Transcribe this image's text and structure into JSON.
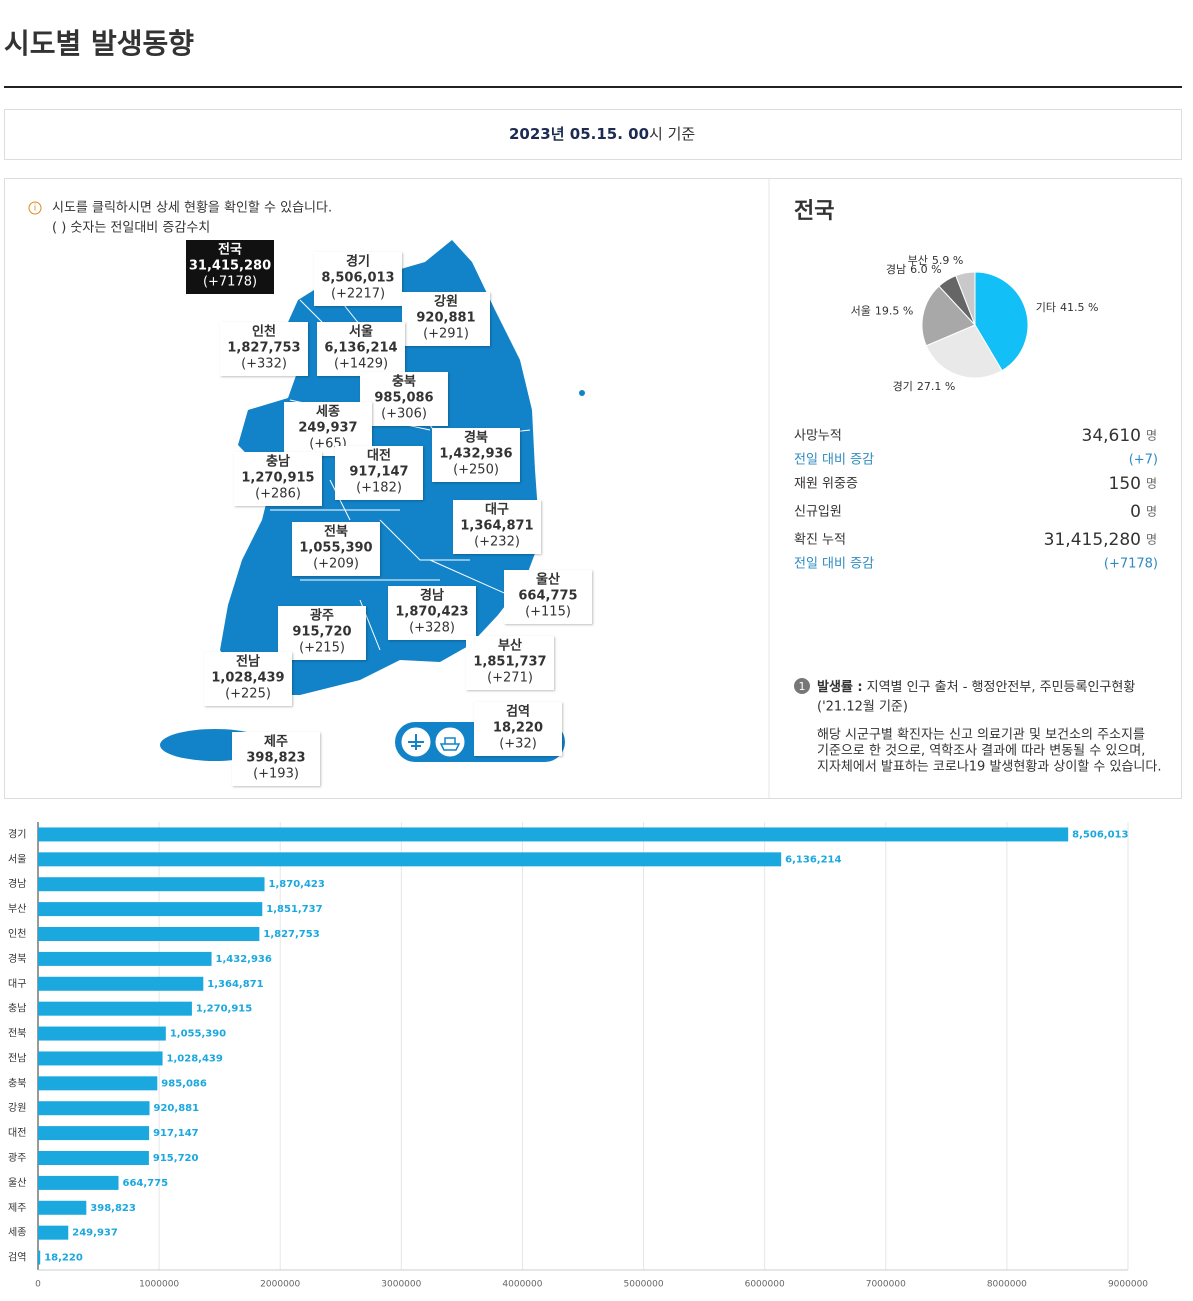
{
  "header": {
    "title": "시도별 발생동향",
    "date_bold": "2023년 05.15. 00",
    "date_rest": "시 기준"
  },
  "map": {
    "info": [
      "시도를 클릭하시면 상세 현황을 확인할 수 있습니다.",
      "( ) 숫자는 전일대비 증감수치"
    ],
    "regions": [
      {
        "name": "전국",
        "total": "31,415,280",
        "change": "(+7178)"
      },
      {
        "name": "경기",
        "total": "8,506,013",
        "change": "(+2217)"
      },
      {
        "name": "강원",
        "total": "920,881",
        "change": "(+291)"
      },
      {
        "name": "인천",
        "total": "1,827,753",
        "change": "(+332)"
      },
      {
        "name": "서울",
        "total": "6,136,214",
        "change": "(+1429)"
      },
      {
        "name": "충북",
        "total": "985,086",
        "change": "(+306)"
      },
      {
        "name": "세종",
        "total": "249,937",
        "change": "(+65)"
      },
      {
        "name": "경북",
        "total": "1,432,936",
        "change": "(+250)"
      },
      {
        "name": "충남",
        "total": "1,270,915",
        "change": "(+286)"
      },
      {
        "name": "대전",
        "total": "917,147",
        "change": "(+182)"
      },
      {
        "name": "대구",
        "total": "1,364,871",
        "change": "(+232)"
      },
      {
        "name": "전북",
        "total": "1,055,390",
        "change": "(+209)"
      },
      {
        "name": "울산",
        "total": "664,775",
        "change": "(+115)"
      },
      {
        "name": "경남",
        "total": "1,870,423",
        "change": "(+328)"
      },
      {
        "name": "광주",
        "total": "915,720",
        "change": "(+215)"
      },
      {
        "name": "부산",
        "total": "1,851,737",
        "change": "(+271)"
      },
      {
        "name": "전남",
        "total": "1,028,439",
        "change": "(+225)"
      },
      {
        "name": "검역",
        "total": "18,220",
        "change": "(+32)"
      },
      {
        "name": "제주",
        "total": "398,823",
        "change": "(+193)"
      }
    ]
  },
  "summary": {
    "title": "전국",
    "rows": [
      {
        "label": "사망누적",
        "value": "34,610",
        "unit": "명"
      },
      {
        "label": "전일 대비 증감",
        "value": "(+7)"
      },
      {
        "label": "재원 위중증",
        "value": "150",
        "unit": "명"
      },
      {
        "label": "신규입원",
        "value": "0",
        "unit": "명"
      },
      {
        "label": "확진 누적",
        "value": "31,415,280",
        "unit": "명"
      },
      {
        "label": "전일 대비 증감",
        "value": "(+7178)"
      }
    ],
    "note_number": "1",
    "note_title": "발생률 :",
    "note_source": "지역별 인구 출처 - 행정안전부, 주민등록인구현황",
    "note_date": "('21.12월 기준)",
    "note_text": [
      "해당 시군구별 확진자는 신고 의료기관 및 보건소의 주소지를",
      "기준으로 한 것으로, 역학조사 결과에 따라 변동될 수 있으며,",
      "지자체에서 발표하는 코로나19 발생현황과 상이할 수 있습니다."
    ]
  },
  "chart_data": [
    {
      "type": "pie",
      "categories": [
        "기타",
        "경기",
        "서울",
        "경남",
        "부산"
      ],
      "values": [
        41.5,
        27.1,
        19.5,
        6.0,
        5.9
      ],
      "value_labels": [
        "41.5 %",
        "27.1 %",
        "19.5 %",
        "6.0 %",
        "5.9 %"
      ],
      "colors": [
        "#12bff6",
        "#e9e9e9",
        "#a8a8a8",
        "#666666",
        "#c9c9c9"
      ]
    },
    {
      "type": "barh",
      "categories": [
        "경기",
        "서울",
        "경남",
        "부산",
        "인천",
        "경북",
        "대구",
        "충남",
        "전북",
        "전남",
        "충북",
        "강원",
        "대전",
        "광주",
        "울산",
        "제주",
        "세종",
        "검역"
      ],
      "values": [
        8506013,
        6136214,
        1870423,
        1851737,
        1827753,
        1432936,
        1364871,
        1270915,
        1055390,
        1028439,
        985086,
        920881,
        917147,
        915720,
        664775,
        398823,
        249937,
        18220
      ],
      "value_labels": [
        "8,506,013",
        "6,136,214",
        "1,870,423",
        "1,851,737",
        "1,827,753",
        "1,432,936",
        "1,364,871",
        "1,270,915",
        "1,055,390",
        "1,028,439",
        "985,086",
        "920,881",
        "917,147",
        "915,720",
        "664,775",
        "398,823",
        "249,937",
        "18,220"
      ],
      "color": "#1aa8df",
      "xlim": [
        0,
        9000000
      ],
      "xticks": [
        0,
        1000000,
        2000000,
        3000000,
        4000000,
        5000000,
        6000000,
        7000000,
        8000000,
        9000000
      ],
      "grid": true
    }
  ]
}
